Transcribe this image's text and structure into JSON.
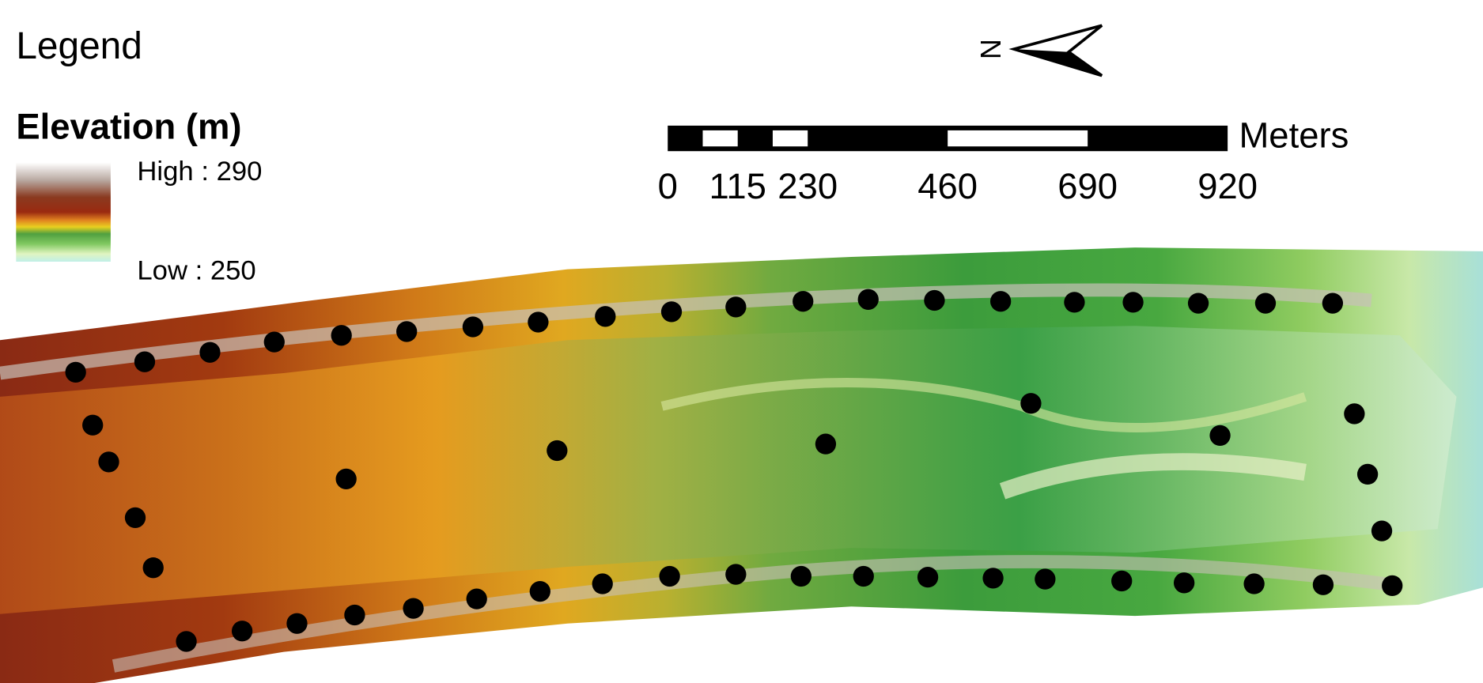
{
  "legend": {
    "title": "Legend",
    "layer": "Elevation (m)",
    "high": "High : 290",
    "low": "Low : 250"
  },
  "north_arrow": "N",
  "scale_bar": {
    "labels": [
      0,
      115,
      230,
      460,
      690,
      920
    ],
    "unit": "Meters"
  }
}
